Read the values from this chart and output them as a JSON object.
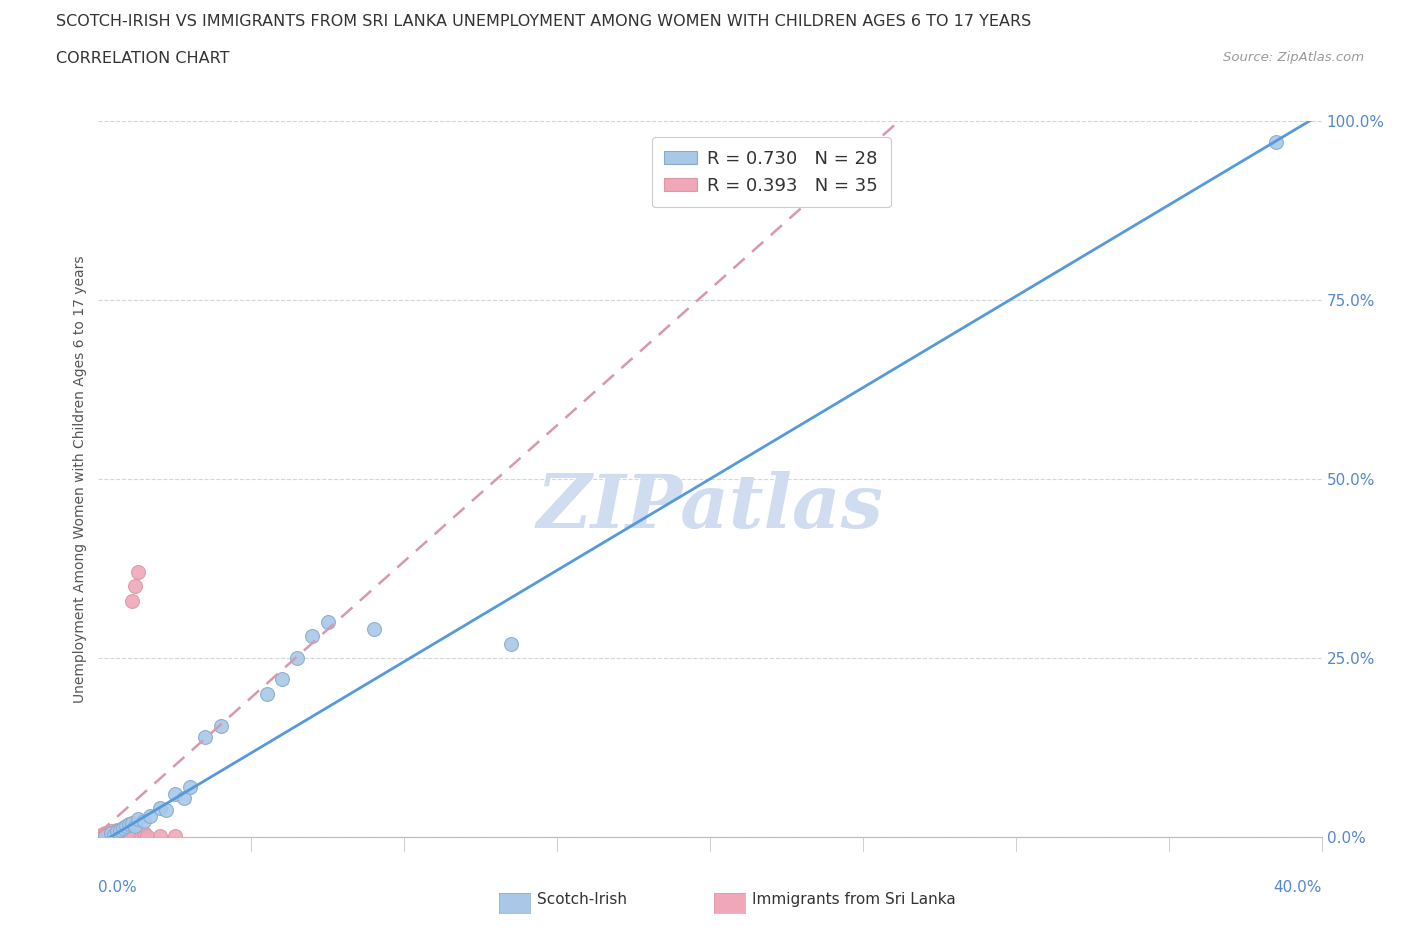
{
  "title_line1": "SCOTCH-IRISH VS IMMIGRANTS FROM SRI LANKA UNEMPLOYMENT AMONG WOMEN WITH CHILDREN AGES 6 TO 17 YEARS",
  "title_line2": "CORRELATION CHART",
  "source_text": "Source: ZipAtlas.com",
  "xlabel_bottom_left": "0.0%",
  "xlabel_bottom_right": "40.0%",
  "ylabel_label": "Unemployment Among Women with Children Ages 6 to 17 years",
  "xmin": 0.0,
  "xmax": 0.4,
  "ymin": 0.0,
  "ymax": 1.0,
  "yticks": [
    0.0,
    0.25,
    0.5,
    0.75,
    1.0
  ],
  "ytick_labels": [
    "0.0%",
    "25.0%",
    "50.0%",
    "75.0%",
    "100.0%"
  ],
  "blue_R": 0.73,
  "blue_N": 28,
  "pink_R": 0.393,
  "pink_N": 35,
  "blue_color": "#a8c8e8",
  "pink_color": "#f0a8b8",
  "blue_line_color": "#5599dd",
  "pink_line_color": "#d898a8",
  "watermark": "ZIPatlas",
  "watermark_color": "#d0ddf0",
  "blue_line_slope": 2.55,
  "blue_line_intercept": -0.01,
  "pink_line_slope": 3.8,
  "pink_line_intercept": 0.005,
  "blue_dots_x": [
    0.002,
    0.004,
    0.005,
    0.006,
    0.007,
    0.008,
    0.009,
    0.01,
    0.011,
    0.012,
    0.013,
    0.015,
    0.017,
    0.02,
    0.022,
    0.025,
    0.028,
    0.03,
    0.035,
    0.04,
    0.055,
    0.06,
    0.065,
    0.07,
    0.075,
    0.09,
    0.135,
    0.385
  ],
  "blue_dots_y": [
    0.002,
    0.005,
    0.003,
    0.008,
    0.01,
    0.012,
    0.015,
    0.018,
    0.02,
    0.015,
    0.025,
    0.022,
    0.03,
    0.04,
    0.038,
    0.06,
    0.055,
    0.07,
    0.14,
    0.155,
    0.2,
    0.22,
    0.25,
    0.28,
    0.3,
    0.29,
    0.27,
    0.97
  ],
  "pink_dots_x": [
    0.001,
    0.001,
    0.002,
    0.002,
    0.002,
    0.003,
    0.003,
    0.003,
    0.004,
    0.004,
    0.004,
    0.005,
    0.005,
    0.005,
    0.006,
    0.006,
    0.006,
    0.007,
    0.007,
    0.007,
    0.008,
    0.008,
    0.008,
    0.009,
    0.009,
    0.01,
    0.01,
    0.011,
    0.012,
    0.013,
    0.014,
    0.015,
    0.016,
    0.02,
    0.025
  ],
  "pink_dots_y": [
    0.001,
    0.003,
    0.001,
    0.002,
    0.005,
    0.001,
    0.003,
    0.006,
    0.001,
    0.004,
    0.008,
    0.001,
    0.003,
    0.007,
    0.001,
    0.004,
    0.01,
    0.001,
    0.003,
    0.008,
    0.001,
    0.004,
    0.012,
    0.001,
    0.006,
    0.001,
    0.005,
    0.33,
    0.35,
    0.37,
    0.001,
    0.005,
    0.001,
    0.001,
    0.001
  ]
}
